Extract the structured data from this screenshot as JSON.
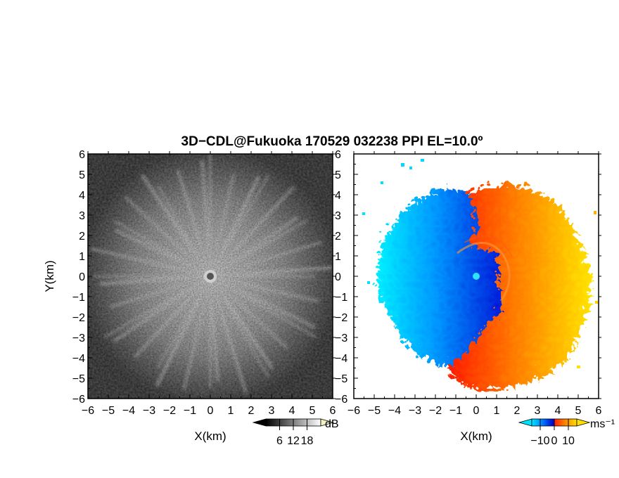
{
  "title": "3D−CDL@Fukuoka 170529 032238 PPI EL=10.0º",
  "chart_data": [
    {
      "type": "heatmap",
      "panel": "left",
      "quantity": "backscatter intensity",
      "xlabel": "X(km)",
      "ylabel": "Y(km)",
      "xlim": [
        -6,
        6
      ],
      "ylim": [
        -6,
        6
      ],
      "xticks": [
        -6,
        -5,
        -4,
        -3,
        -2,
        -1,
        0,
        1,
        2,
        3,
        4,
        5,
        6
      ],
      "yticks": [
        -6,
        -5,
        -4,
        -3,
        -2,
        -1,
        0,
        1,
        2,
        3,
        4,
        5,
        6
      ],
      "xtick_labels": [
        "−6",
        "−5",
        "−4",
        "−3",
        "−2",
        "−1",
        "0",
        "1",
        "2",
        "3",
        "4",
        "5",
        "6"
      ],
      "ytick_labels": [
        "−6",
        "−5",
        "−4",
        "−3",
        "−2",
        "−1",
        "0",
        "1",
        "2",
        "3",
        "4",
        "5",
        "6"
      ],
      "colorbar": {
        "unit": "dB",
        "range": [
          0,
          24
        ],
        "ticks": [
          6,
          12,
          18
        ],
        "tick_labels": [
          "6",
          "12",
          "18"
        ],
        "colormap": "grayscale",
        "extend": "both"
      }
    },
    {
      "type": "heatmap",
      "panel": "right",
      "quantity": "radial velocity",
      "xlabel": "X(km)",
      "ylabel": "",
      "xlim": [
        -6,
        6
      ],
      "ylim": [
        -6,
        6
      ],
      "xticks": [
        -6,
        -5,
        -4,
        -3,
        -2,
        -1,
        0,
        1,
        2,
        3,
        4,
        5,
        6
      ],
      "yticks": [
        -6,
        -5,
        -4,
        -3,
        -2,
        -1,
        0,
        1,
        2,
        3,
        4,
        5,
        6
      ],
      "xtick_labels": [
        "−6",
        "−5",
        "−4",
        "−3",
        "−2",
        "−1",
        "0",
        "1",
        "2",
        "3",
        "4",
        "5",
        "6"
      ],
      "ytick_labels": [
        "−6",
        "−5",
        "−4",
        "−3",
        "−2",
        "−1",
        "0",
        "1",
        "2",
        "3",
        "4",
        "5",
        "6"
      ],
      "colorbar": {
        "unit": "ms⁻¹",
        "range": [
          -16,
          16
        ],
        "ticks": [
          -10,
          0,
          10
        ],
        "tick_labels": [
          "−10",
          "0",
          "10"
        ],
        "colormap": "cyan-blue-red-yellow",
        "colors": [
          "#00e5ff",
          "#0077ff",
          "#0000cc",
          "#ff2a00",
          "#ff8800",
          "#ffe000"
        ],
        "extend": "both"
      }
    }
  ]
}
